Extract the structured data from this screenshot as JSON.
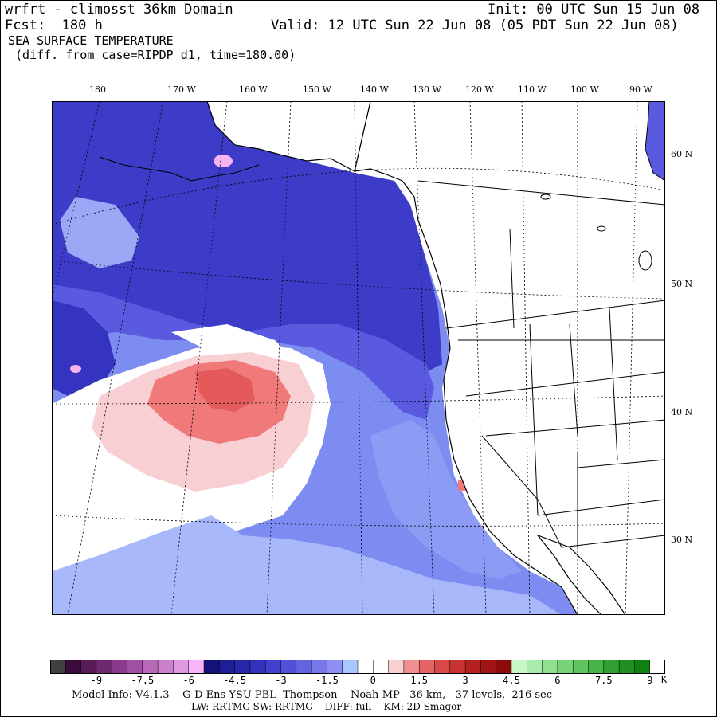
{
  "header": {
    "model_title": "wrfrt - climosst 36km Domain",
    "init": "Init: 00 UTC Sun 15 Jun 08",
    "fcst": "Fcst:  180 h",
    "valid": "Valid: 12 UTC Sun 22 Jun 08 (05 PDT Sun 22 Jun 08)",
    "field_name": "SEA SURFACE TEMPERATURE",
    "field_desc": " (diff. from case=RIPDP d1, time=180.00)"
  },
  "map": {
    "lon_labels": [
      "180",
      "170 W",
      "160 W",
      "150 W",
      "140 W",
      "130 W",
      "120 W",
      "110 W",
      "100 W",
      "90 W"
    ],
    "lat_labels": [
      "60 N",
      "50 N",
      "40 N",
      "30 N"
    ],
    "colors": {
      "land": "#ffffff",
      "coast": "#000000",
      "deep_blue": "#3a36c4",
      "mid_blue": "#5a5ae0",
      "light_blue": "#8a9af4",
      "pale_blue": "#b8c8fc",
      "pale_red": "#f8d0d0",
      "red": "#f07878",
      "dark_red": "#c03030",
      "pink": "#f8b4f0"
    }
  },
  "colorbar": {
    "colors": [
      "#404040",
      "#3a0a3a",
      "#5a1a5a",
      "#6e2a6e",
      "#8a3a8a",
      "#a050a0",
      "#b868b8",
      "#cc80cc",
      "#e098e0",
      "#f8b4f8",
      "#141478",
      "#1e1e96",
      "#2828aa",
      "#3232be",
      "#4040cc",
      "#5050d8",
      "#6464e0",
      "#7878ea",
      "#9090f4",
      "#a8c8ff",
      "#ffffff",
      "#ffffff",
      "#f8d0d0",
      "#f09090",
      "#e46464",
      "#d84848",
      "#c83232",
      "#b42020",
      "#a01414",
      "#8c0a0a",
      "#c8f8c8",
      "#a8ecac",
      "#90e090",
      "#78d478",
      "#60c460",
      "#48b448",
      "#30a030",
      "#209020",
      "#108010",
      "#ffffff"
    ],
    "labels": [
      "-9",
      "-7.5",
      "-6",
      "-4.5",
      "-3",
      "-1.5",
      "0",
      "1.5",
      "3",
      "4.5",
      "6",
      "7.5",
      "9"
    ],
    "unit": "K"
  },
  "model_info": {
    "line1": "Model Info: V4.1.3    G-D Ens YSU PBL  Thompson    Noah-MP   36 km,   37 levels,  216 sec",
    "line2": "LW: RRTMG SW: RRTMG    DIFF: full    KM: 2D Smagor"
  }
}
